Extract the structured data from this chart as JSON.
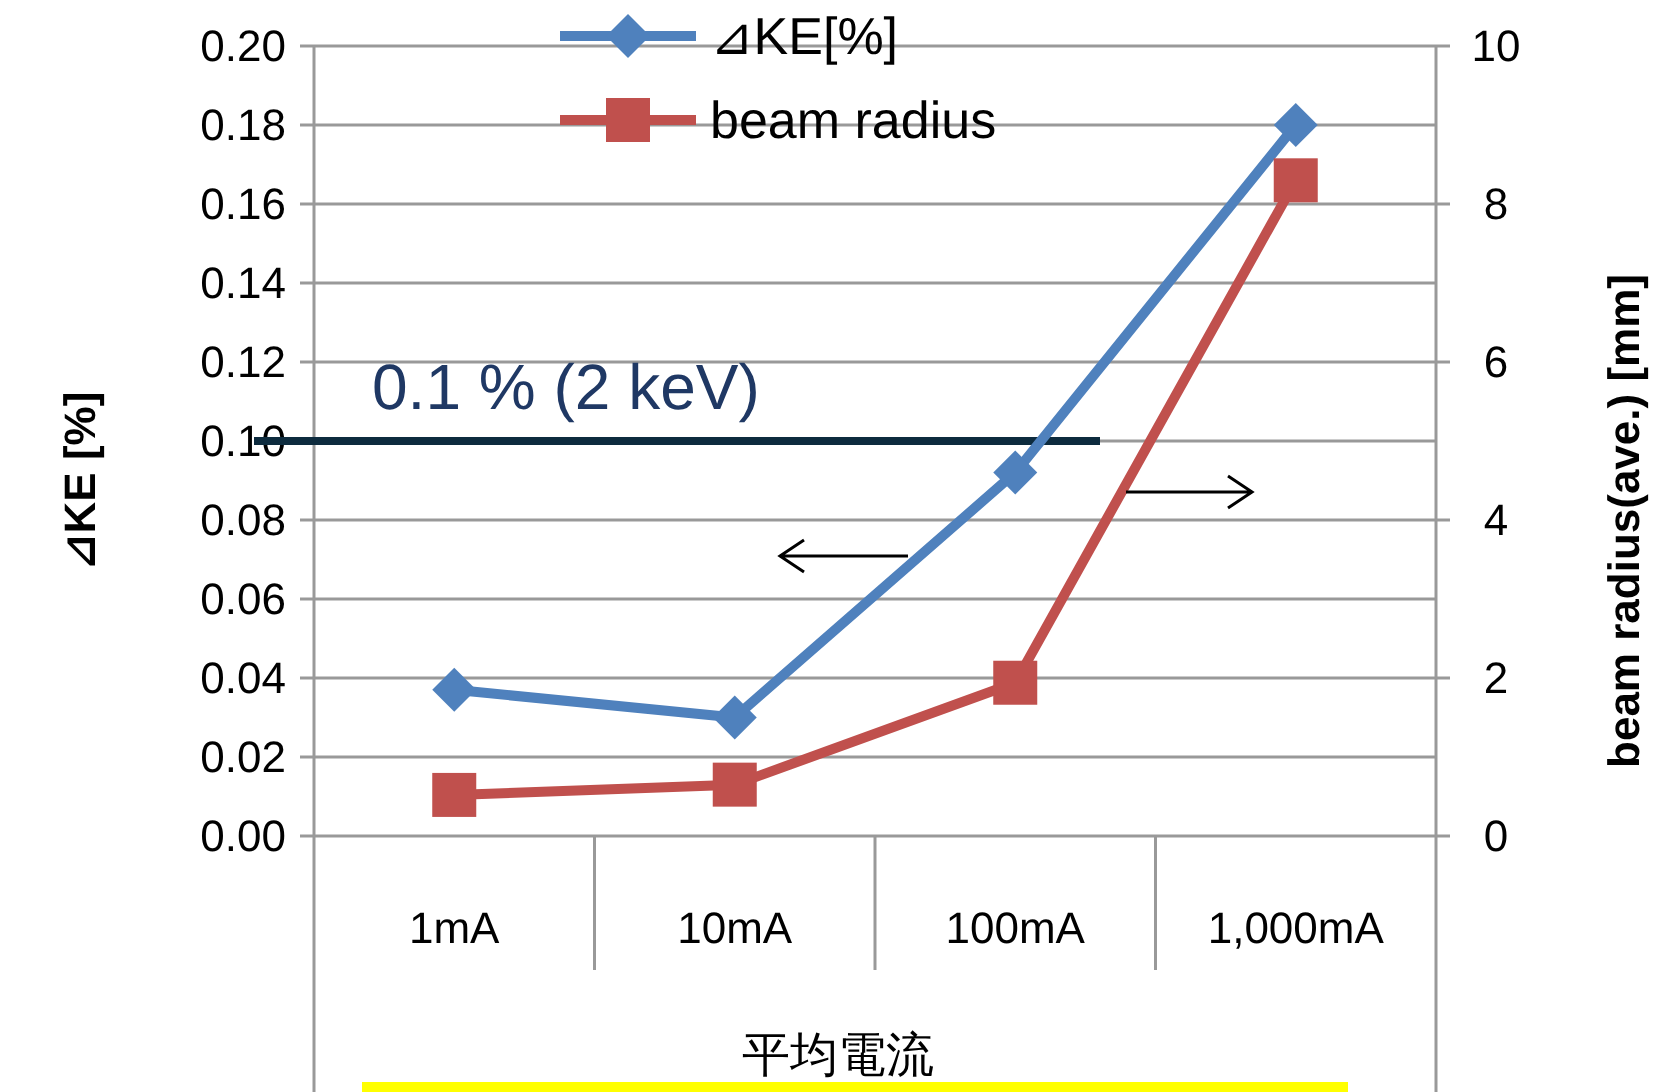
{
  "chart_data": {
    "type": "line",
    "categories": [
      "1mA",
      "10mA",
      "100mA",
      "1,000mA"
    ],
    "xlabel": "平均電流",
    "ylabel": "⊿KE [%]",
    "y2label": "beam radius(ave.) [mm]",
    "series": [
      {
        "name": "⊿KE[%]",
        "color": "#4f81bd",
        "values": [
          0.037,
          0.03,
          0.092,
          0.18
        ],
        "marker": "diamond"
      },
      {
        "name": "beam radius",
        "color": "#c0504d",
        "values": [
          0.52,
          0.65,
          1.94,
          8.3
        ],
        "marker": "square",
        "axis": "y2"
      }
    ],
    "ylim": [
      0,
      0.2
    ],
    "yticks": [
      {
        "value": 0,
        "label": "0.00"
      },
      {
        "value": 0.02,
        "label": "0.02"
      },
      {
        "value": 0.04,
        "label": "0.04"
      },
      {
        "value": 0.06,
        "label": "0.06"
      },
      {
        "value": 0.08,
        "label": "0.08"
      },
      {
        "value": 0.1,
        "label": "0.10"
      },
      {
        "value": 0.12,
        "label": "0.12"
      },
      {
        "value": 0.14,
        "label": "0.14"
      },
      {
        "value": 0.16,
        "label": "0.16"
      },
      {
        "value": 0.18,
        "label": "0.18"
      },
      {
        "value": 0.2,
        "label": "0.20"
      }
    ],
    "y2lim": [
      0,
      10
    ],
    "y2ticks": [
      0,
      2,
      4,
      6,
      8,
      10
    ],
    "ref_lines": [
      {
        "axis": "y",
        "value": 0.1,
        "label": "0.1 % (2 keV)",
        "color": "#0d2b3e"
      }
    ],
    "grid": "y",
    "legend": "top",
    "line_style": "solid"
  }
}
